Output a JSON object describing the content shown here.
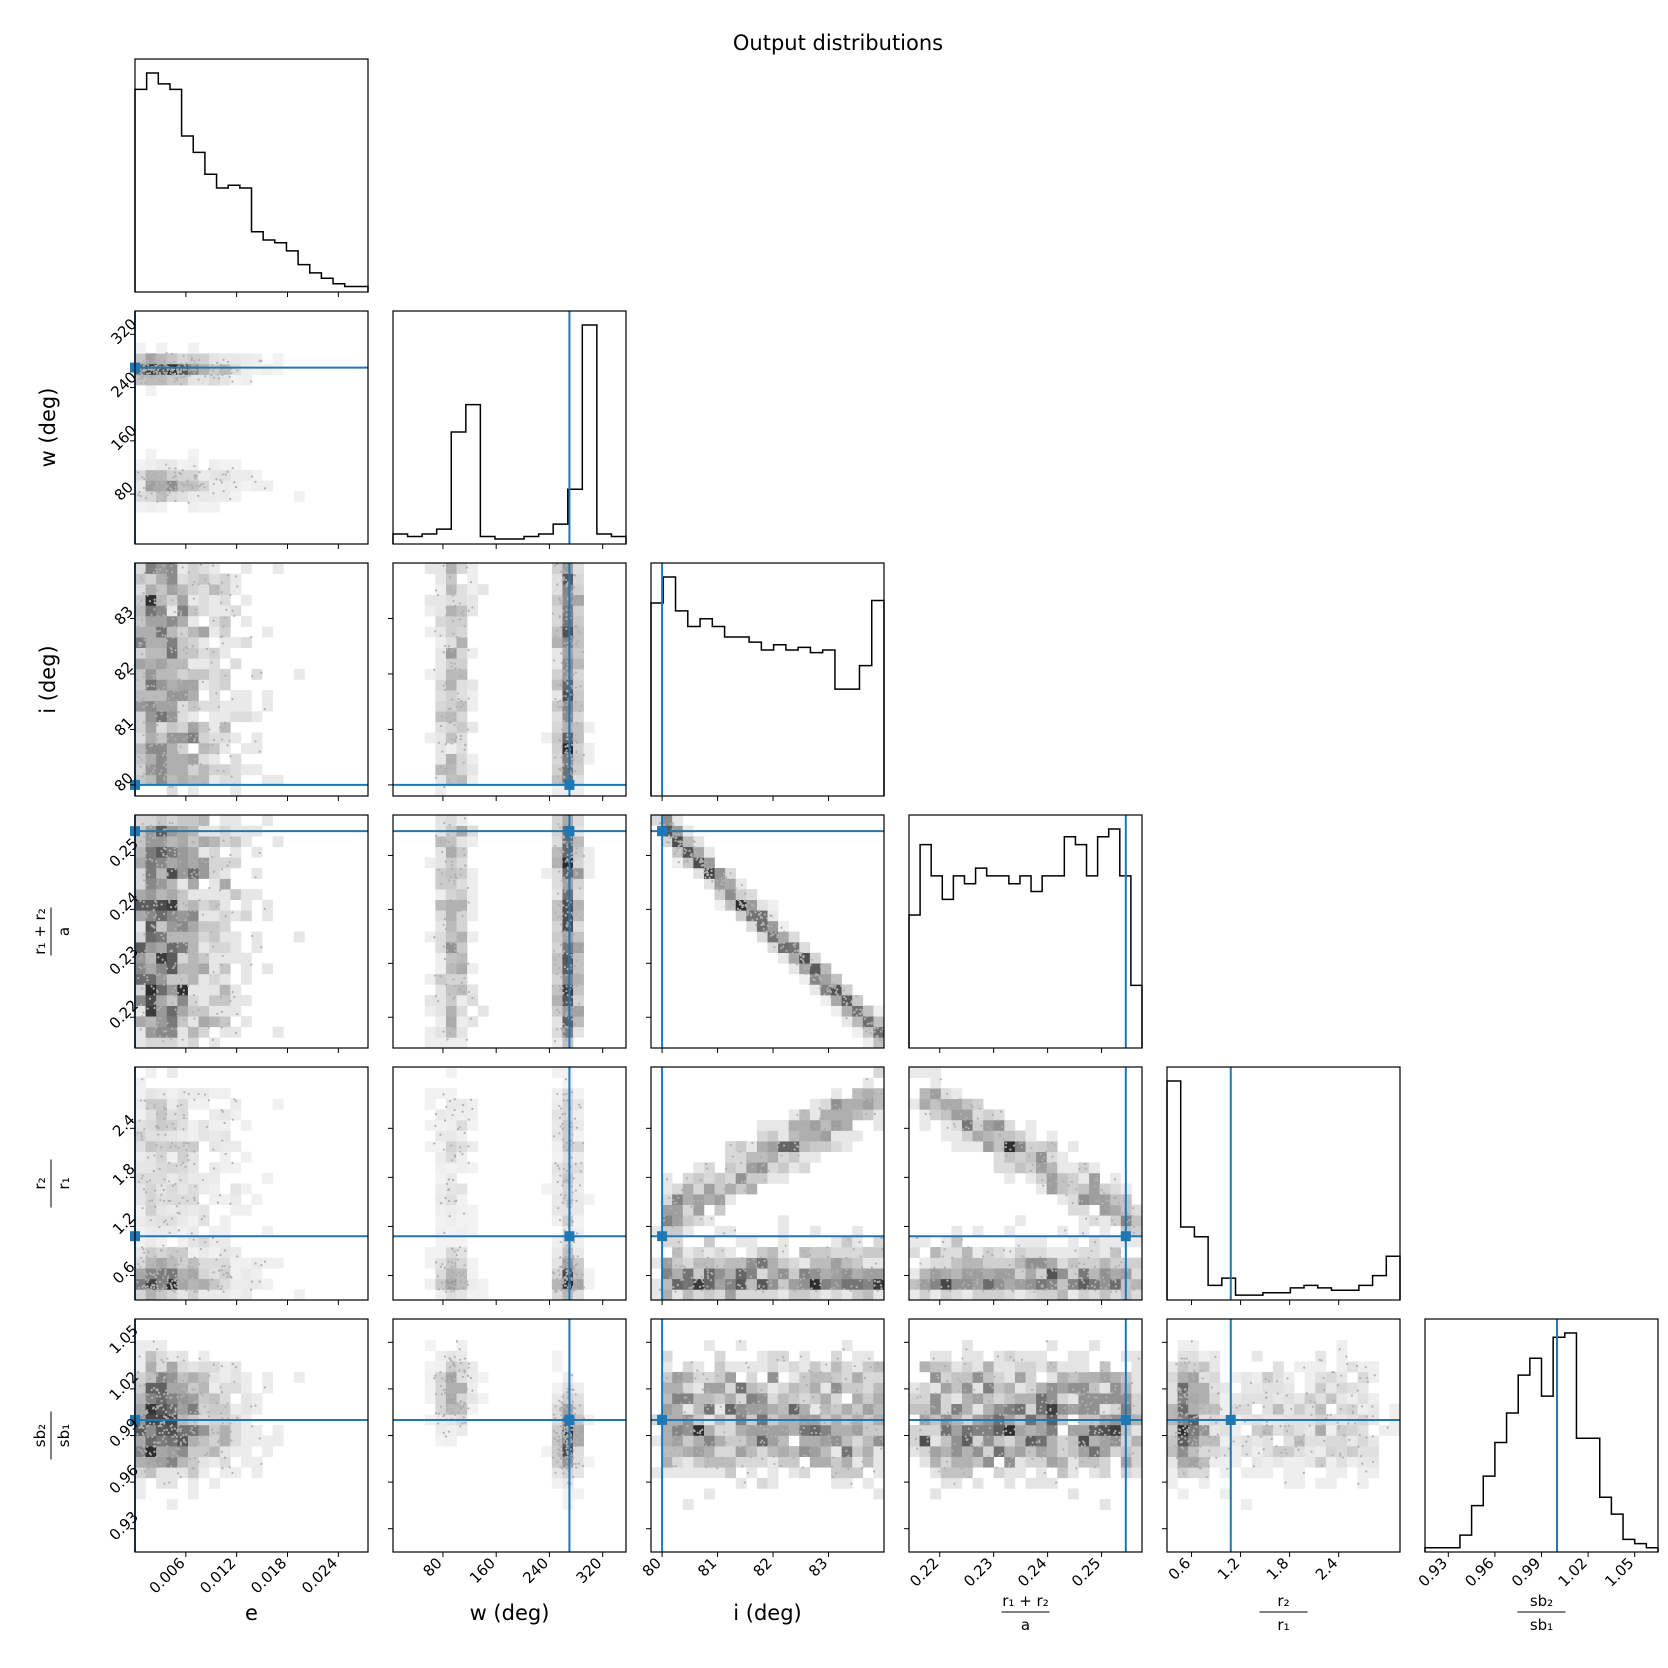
{
  "chart_data": {
    "type": "corner",
    "title": "Output distributions",
    "truth_color": "#1f77b4",
    "parameters": [
      {
        "key": "e",
        "label_lines": [
          "e"
        ],
        "range": [
          0.0,
          0.0275
        ],
        "ticks": [
          0.006,
          0.012,
          0.018,
          0.024
        ],
        "tick_labels": [
          "0.006",
          "0.012",
          "0.018",
          "0.024"
        ],
        "truth": 0.0
      },
      {
        "key": "w",
        "label_lines": [
          "w (deg)"
        ],
        "range": [
          5,
          355
        ],
        "ticks": [
          80,
          160,
          240,
          320
        ],
        "tick_labels": [
          "80",
          "160",
          "240",
          "320"
        ],
        "truth": 270
      },
      {
        "key": "i",
        "label_lines": [
          "i (deg)"
        ],
        "range": [
          79.8,
          84.0
        ],
        "ticks": [
          80,
          81,
          82,
          83
        ],
        "tick_labels": [
          "80",
          "81",
          "82",
          "83"
        ],
        "truth": 80.0
      },
      {
        "key": "r_sum",
        "label_lines": [
          "r₁ + r₂",
          "a"
        ],
        "range": [
          0.2143,
          0.2575
        ],
        "ticks": [
          0.22,
          0.23,
          0.24,
          0.25
        ],
        "tick_labels": [
          "0.22",
          "0.23",
          "0.24",
          "0.25"
        ],
        "truth": 0.2545
      },
      {
        "key": "k",
        "label_lines": [
          "r₂",
          "r₁"
        ],
        "range": [
          0.3,
          3.15
        ],
        "ticks": [
          0.6,
          1.2,
          1.8,
          2.4
        ],
        "tick_labels": [
          "0.6",
          "1.2",
          "1.8",
          "2.4"
        ],
        "truth": 1.08
      },
      {
        "key": "sb",
        "label_lines": [
          "sb₂",
          "sb₁"
        ],
        "range": [
          0.915,
          1.065
        ],
        "ticks": [
          0.93,
          0.96,
          0.99,
          1.02,
          1.05
        ],
        "tick_labels": [
          "0.93",
          "0.96",
          "0.99",
          "1.02",
          "1.05"
        ],
        "truth": 1.0
      }
    ],
    "histograms": [
      [
        74,
        80,
        76,
        74,
        57,
        51,
        43,
        38,
        39,
        38,
        22,
        19,
        18,
        15,
        10,
        7,
        5,
        3,
        2,
        2
      ],
      [
        4,
        3,
        4,
        6,
        45,
        56,
        3,
        2,
        2,
        3,
        4,
        8,
        22,
        88,
        4,
        3
      ],
      [
        74,
        84,
        71,
        65,
        68,
        65,
        61,
        61,
        59,
        56,
        58,
        56,
        57,
        55,
        56,
        41,
        41,
        50,
        75
      ],
      [
        17,
        26,
        22,
        19,
        22,
        21,
        23,
        22,
        22,
        21,
        22,
        20,
        22,
        22,
        27,
        26,
        22,
        27,
        28,
        22,
        8
      ],
      [
        90,
        30,
        26,
        6,
        9,
        2,
        2,
        3,
        3,
        5,
        6,
        5,
        4,
        4,
        6,
        10,
        18
      ],
      [
        1,
        1,
        1,
        4,
        11,
        18,
        26,
        33,
        42,
        46,
        37,
        51,
        52,
        27,
        27,
        13,
        9,
        3,
        2,
        1
      ]
    ]
  }
}
